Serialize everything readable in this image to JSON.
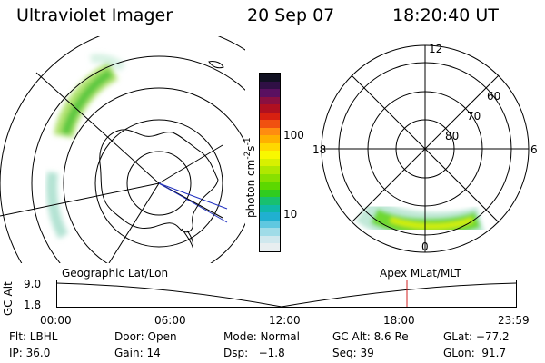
{
  "header": {
    "instrument": "Ultraviolet Imager",
    "date": "20 Sep 07",
    "time": "18:20:40 UT"
  },
  "colorbar": {
    "unit": "photon cm",
    "unit_sup1": "-2",
    "unit_s": "s",
    "unit_sup2": "-1",
    "ticks": [
      "100",
      "10"
    ],
    "colors": [
      "#111122",
      "#301045",
      "#5a1060",
      "#8a1040",
      "#b01020",
      "#d82010",
      "#f05010",
      "#ff8c10",
      "#ffb000",
      "#ffd800",
      "#f8f800",
      "#d8f000",
      "#b0e800",
      "#88e000",
      "#5cd800",
      "#30cc20",
      "#18c070",
      "#10b8a8",
      "#20b0d0",
      "#60c8e0",
      "#a0dce8",
      "#d0e8ee",
      "#e8eef0"
    ]
  },
  "mlt_map": {
    "labels": {
      "top": "12",
      "left": "18",
      "right": "6",
      "bottom": "0"
    },
    "lat_labels": [
      "60",
      "70",
      "80"
    ]
  },
  "timeline": {
    "left_label": "Geographic Lat/Lon",
    "right_label": "Apex MLat/MLT",
    "yaxis_title": "GC Alt",
    "y_top": "9.0",
    "y_bottom": "1.8",
    "x_ticks": [
      "00:00",
      "06:00",
      "12:00",
      "18:00",
      "23:59"
    ],
    "marker_time": "18:20:40"
  },
  "info": {
    "flt": "Flt: LBHL",
    "ip": "IP: 36.0",
    "door": "Door: Open",
    "gain": "Gain: 14",
    "mode": "Mode: Normal",
    "dsp": "Dsp:   −1.8",
    "gcalt": "GC Alt: 8.6 Re",
    "seq": "Seq: 39",
    "glat": "GLat: −77.2",
    "glon": "GLon:  91.7"
  }
}
